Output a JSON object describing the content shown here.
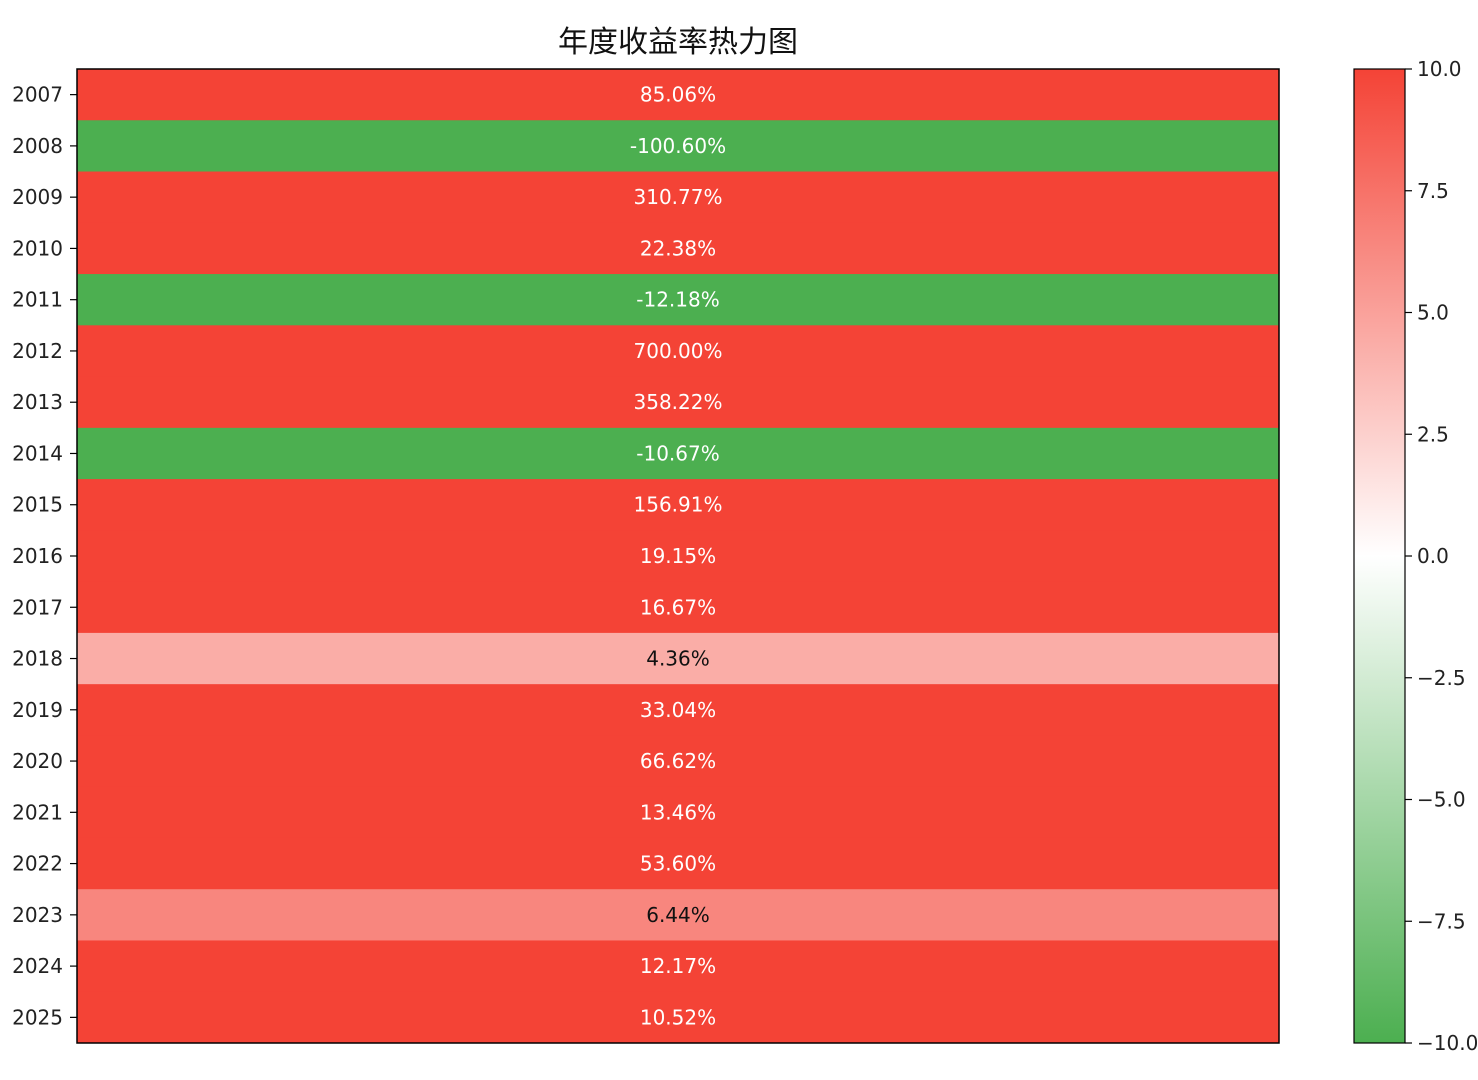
{
  "chart_data": {
    "type": "heatmap",
    "title": "年度收益率热力图",
    "rows": [
      "2007",
      "2008",
      "2009",
      "2010",
      "2011",
      "2012",
      "2013",
      "2014",
      "2015",
      "2016",
      "2017",
      "2018",
      "2019",
      "2020",
      "2021",
      "2022",
      "2023",
      "2024",
      "2025"
    ],
    "values": [
      85.06,
      -100.6,
      310.77,
      22.38,
      -12.18,
      700.0,
      358.22,
      -10.67,
      156.91,
      19.15,
      16.67,
      4.36,
      33.04,
      66.62,
      13.46,
      53.6,
      6.44,
      12.17,
      10.52
    ],
    "cell_labels": [
      "85.06%",
      "-100.60%",
      "310.77%",
      "22.38%",
      "-12.18%",
      "700.00%",
      "358.22%",
      "-10.67%",
      "156.91%",
      "19.15%",
      "16.67%",
      "4.36%",
      "33.04%",
      "66.62%",
      "13.46%",
      "53.60%",
      "6.44%",
      "12.17%",
      "10.52%"
    ],
    "colorbar": {
      "min": -10.0,
      "max": 10.0,
      "ticks": [
        10.0,
        7.5,
        5.0,
        2.5,
        0.0,
        -2.5,
        -5.0,
        -7.5,
        -10.0
      ],
      "tick_labels": [
        "10.0",
        "7.5",
        "5.0",
        "2.5",
        "0.0",
        "−2.5",
        "−5.0",
        "−7.5",
        "−10.0"
      ],
      "colors": {
        "low": "#4caf50",
        "mid": "#ffffff",
        "high": "#f44336"
      }
    },
    "x_axis_visible": false,
    "grid": false
  }
}
